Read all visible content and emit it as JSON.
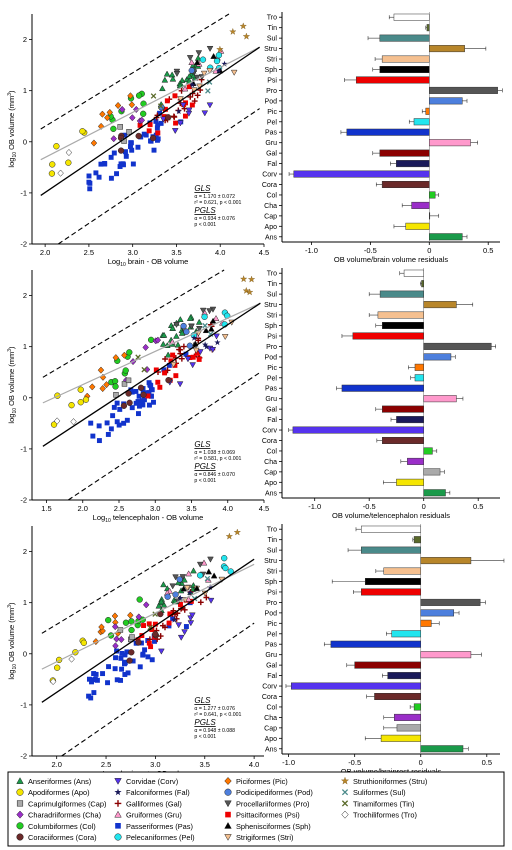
{
  "chart_data": [
    {
      "type": "scatter",
      "panel": "A-scatter",
      "xlabel_prefix": "Log",
      "xlabel_sub": "10",
      "xlabel_rest": " brain - OB volume",
      "ylabel_prefix": "log",
      "ylabel_sub": "10",
      "ylabel_rest": " OB volume (mm",
      "ylabel_sup": "3",
      "ylabel_close": ")",
      "xlim": [
        1.85,
        4.5
      ],
      "ylim": [
        -2,
        2.5
      ],
      "xticks": [
        "2.0",
        "2.5",
        "3.0",
        "3.5",
        "4.0",
        "4.5"
      ],
      "yticks": [
        "-2",
        "-1",
        "0",
        "1",
        "2"
      ],
      "gls_title": "GLS",
      "gls_line1": "α = 1.170 ± 0.072",
      "gls_line2": "r² = 0.621, p < 0.001",
      "pgls_title": "PGLS",
      "pgls_line1": "α = 0.934 ± 0.076",
      "pgls_line2": "p < 0.001",
      "lines": {
        "gls": [
          [
            1.95,
            -1.05
          ],
          [
            4.45,
            1.85
          ]
        ],
        "pgls": [
          [
            1.95,
            -0.35
          ],
          [
            4.45,
            1.85
          ]
        ],
        "upper": [
          [
            1.95,
            0.25
          ],
          [
            4.1,
            2.5
          ]
        ],
        "lower": [
          [
            2.15,
            -2.0
          ],
          [
            4.45,
            0.65
          ]
        ]
      }
    },
    {
      "type": "bar",
      "panel": "A-bars",
      "xlabel": "OB volume/brain volume residuals",
      "xlim": [
        -1.25,
        0.6
      ],
      "xticks": [
        "-1.0",
        "-0.5",
        "0",
        "0.5"
      ],
      "categories": [
        "Tro",
        "Tin",
        "Sul",
        "Stru",
        "Stri",
        "Sph",
        "Psi",
        "Pro",
        "Pod",
        "Pic",
        "Pel",
        "Pas",
        "Gru",
        "Gal",
        "Fal",
        "Corv",
        "Cora",
        "Col",
        "Cha",
        "Cap",
        "Apo",
        "Ans"
      ],
      "values": [
        -0.3,
        -0.02,
        -0.42,
        0.3,
        -0.4,
        -0.42,
        -0.62,
        0.58,
        0.28,
        -0.03,
        -0.13,
        -0.7,
        0.35,
        -0.42,
        -0.28,
        -1.15,
        -0.4,
        0.05,
        -0.15,
        0,
        -0.2,
        0.28
      ],
      "errors": [
        0.04,
        0.01,
        0.1,
        0.18,
        0.06,
        0.06,
        0.1,
        0.04,
        0.04,
        0.03,
        0.04,
        0.05,
        0.06,
        0.06,
        0.05,
        0.04,
        0.05,
        0.03,
        0.08,
        0.08,
        0.1,
        0.04
      ]
    },
    {
      "type": "scatter",
      "panel": "B-scatter",
      "xlabel_prefix": "Log",
      "xlabel_sub": "10",
      "xlabel_rest": " telencephalon - OB volume",
      "ylabel_prefix": "log",
      "ylabel_sub": "10",
      "ylabel_rest": " OB volume (mm",
      "ylabel_sup": "3",
      "ylabel_close": ")",
      "xlim": [
        1.3,
        4.5
      ],
      "ylim": [
        -2,
        2.5
      ],
      "xticks": [
        "1.5",
        "2.0",
        "2.5",
        "3.0",
        "3.5",
        "4.0",
        "4.5"
      ],
      "yticks": [
        "-2",
        "-1",
        "0",
        "1",
        "2"
      ],
      "gls_title": "GLS",
      "gls_line1": "α = 1.038 ± 0.069",
      "gls_line2": "r² = 0.581, p < 0.001",
      "pgls_title": "PGLS",
      "pgls_line1": "α = 0.846 ± 0.070",
      "pgls_line2": "p < 0.001",
      "lines": {
        "gls": [
          [
            1.45,
            -0.95
          ],
          [
            4.45,
            1.85
          ]
        ],
        "pgls": [
          [
            1.45,
            -0.1
          ],
          [
            4.45,
            1.85
          ]
        ],
        "upper": [
          [
            1.45,
            0.4
          ],
          [
            3.95,
            2.5
          ]
        ],
        "lower": [
          [
            1.8,
            -2.0
          ],
          [
            4.45,
            0.5
          ]
        ]
      }
    },
    {
      "type": "bar",
      "panel": "B-bars",
      "xlabel": "OB volume/telencephalon residuals",
      "xlim": [
        -1.3,
        0.7
      ],
      "xticks": [
        "-1.0",
        "-0.5",
        "0",
        "0.5"
      ],
      "categories": [
        "Tro",
        "Tin",
        "Sul",
        "Stru",
        "Stri",
        "Sph",
        "Psi",
        "Pro",
        "Pod",
        "Pic",
        "Pel",
        "Pas",
        "Gru",
        "Gal",
        "Fal",
        "Corv",
        "Cora",
        "Col",
        "Cha",
        "Cap",
        "Apo",
        "Ans"
      ],
      "values": [
        -0.18,
        -0.02,
        -0.4,
        0.3,
        -0.42,
        -0.38,
        -0.65,
        0.62,
        0.25,
        -0.08,
        -0.08,
        -0.75,
        0.3,
        -0.38,
        -0.25,
        -1.2,
        -0.38,
        0.08,
        -0.15,
        0.15,
        -0.25,
        0.2
      ],
      "errors": [
        0.04,
        0.01,
        0.1,
        0.15,
        0.08,
        0.06,
        0.1,
        0.04,
        0.04,
        0.06,
        0.04,
        0.05,
        0.06,
        0.06,
        0.05,
        0.04,
        0.05,
        0.04,
        0.06,
        0.04,
        0.12,
        0.04
      ]
    },
    {
      "type": "scatter",
      "panel": "C-scatter",
      "xlabel_prefix": "Log",
      "xlabel_sub": "10",
      "xlabel_rest": "brainrest - OB volume",
      "ylabel_prefix": "log",
      "ylabel_sub": "10",
      "ylabel_rest": " OB volume (mm",
      "ylabel_sup": "3",
      "ylabel_close": ")",
      "xlim": [
        1.75,
        4.1
      ],
      "ylim": [
        -2,
        2.5
      ],
      "xticks": [
        "2.0",
        "2.5",
        "3.0",
        "3.5",
        "4.0"
      ],
      "yticks": [
        "-2",
        "-1",
        "0",
        "1",
        "2"
      ],
      "gls_title": "GLS",
      "gls_line1": "α = 1.277 ± 0.076",
      "gls_line2": "r² = 0.641, p < 0.001",
      "pgls_title": "PGLS",
      "pgls_line1": "α = 0.948 ± 0.088",
      "pgls_line2": "p < 0.001",
      "lines": {
        "gls": [
          [
            1.85,
            -0.95
          ],
          [
            4.0,
            1.85
          ]
        ],
        "pgls": [
          [
            1.85,
            -0.3
          ],
          [
            4.0,
            1.75
          ]
        ],
        "upper": [
          [
            1.85,
            0.4
          ],
          [
            3.65,
            2.5
          ]
        ],
        "lower": [
          [
            2.05,
            -2.0
          ],
          [
            4.0,
            0.6
          ]
        ]
      }
    },
    {
      "type": "bar",
      "panel": "C-bars",
      "xlabel": "OB volume/brainrest residuals",
      "xlim": [
        -1.05,
        0.6
      ],
      "xticks": [
        "-1.0",
        "-0.5",
        "0",
        "0.5"
      ],
      "categories": [
        "Tro",
        "Tin",
        "Sul",
        "Stru",
        "Stri",
        "Sph",
        "Psi",
        "Pro",
        "Pod",
        "Pic",
        "Pel",
        "Pas",
        "Gru",
        "Gal",
        "Fal",
        "Corv",
        "Cora",
        "Col",
        "Cha",
        "Cap",
        "Apo",
        "Ans"
      ],
      "values": [
        -0.45,
        -0.05,
        -0.45,
        0.38,
        -0.28,
        -0.42,
        -0.45,
        0.45,
        0.25,
        0.08,
        -0.22,
        -0.68,
        0.38,
        -0.5,
        -0.25,
        -0.98,
        -0.35,
        -0.05,
        -0.2,
        -0.18,
        -0.3,
        0.32
      ],
      "errors": [
        0.04,
        0.01,
        0.1,
        0.25,
        0.06,
        0.25,
        0.06,
        0.04,
        0.04,
        0.06,
        0.04,
        0.05,
        0.08,
        0.06,
        0.04,
        0.04,
        0.06,
        0.03,
        0.08,
        0.1,
        0.12,
        0.04
      ]
    }
  ],
  "species_colors": {
    "Ans": "#1a9a4a",
    "Apo": "#f5e600",
    "Cap": "#aaaaaa",
    "Cha": "#9a2ec8",
    "Col": "#22cc22",
    "Cora": "#6b2a2a",
    "Corv": "#5533ee",
    "Fal": "#1a1a5a",
    "Gal": "#8b0000",
    "Gru": "#ff99cc",
    "Pas": "#1133cc",
    "Pel": "#22e5ee",
    "Pic": "#ff7700",
    "Pod": "#4d7fdd",
    "Pro": "#555555",
    "Psi": "#ee0000",
    "Sph": "#000000",
    "Stri": "#f5c090",
    "Stru": "#b8862a",
    "Sul": "#4a8a8a",
    "Tin": "#5a6a2a",
    "Tro": "#ffffff"
  },
  "legend": [
    {
      "label": "Anseriformes (Ans)",
      "marker": "triangle",
      "color": "#1a9a4a"
    },
    {
      "label": "Apodiformes (Apo)",
      "marker": "circle",
      "color": "#f5e600"
    },
    {
      "label": "Caprimulgiformes (Cap)",
      "marker": "square",
      "color": "#aaaaaa"
    },
    {
      "label": "Charadriiformes (Cha)",
      "marker": "diamond",
      "color": "#9a2ec8"
    },
    {
      "label": "Columbiformes (Col)",
      "marker": "circle",
      "color": "#22cc22"
    },
    {
      "label": "Coraciiformes (Cora)",
      "marker": "circle",
      "color": "#6b2a2a"
    },
    {
      "label": "Corvidae (Corv)",
      "marker": "triangle-down",
      "color": "#5533ee"
    },
    {
      "label": "Falconiformes (Fal)",
      "marker": "star",
      "color": "#1a1a5a"
    },
    {
      "label": "Galliformes (Gal)",
      "marker": "plus",
      "color": "#8b0000"
    },
    {
      "label": "Gruiformes (Gru)",
      "marker": "triangle",
      "color": "#ff99cc"
    },
    {
      "label": "Passeriformes (Pas)",
      "marker": "square",
      "color": "#1133cc"
    },
    {
      "label": "Pelecaniformes (Pel)",
      "marker": "circle",
      "color": "#22e5ee"
    },
    {
      "label": "Piciformes (Pic)",
      "marker": "diamond",
      "color": "#ff7700"
    },
    {
      "label": "Podicipediformes (Pod)",
      "marker": "circle",
      "color": "#4d7fdd"
    },
    {
      "label": "Procellariiformes (Pro)",
      "marker": "triangle-down",
      "color": "#555555"
    },
    {
      "label": "Psittaciformes (Psi)",
      "marker": "square",
      "color": "#ee0000"
    },
    {
      "label": "Sphenisciformes (Sph)",
      "marker": "triangle",
      "color": "#000000"
    },
    {
      "label": "Strigiformes (Stri)",
      "marker": "triangle-down",
      "color": "#f5c090"
    },
    {
      "label": "Struthioniformes (Stru)",
      "marker": "star",
      "color": "#b8862a"
    },
    {
      "label": "Suliformes (Sul)",
      "marker": "x",
      "color": "#4a8a8a"
    },
    {
      "label": "Tinamiformes (Tin)",
      "marker": "x",
      "color": "#5a6a2a"
    },
    {
      "label": "Trochiliformes (Tro)",
      "marker": "diamond",
      "color": "#ffffff"
    }
  ]
}
